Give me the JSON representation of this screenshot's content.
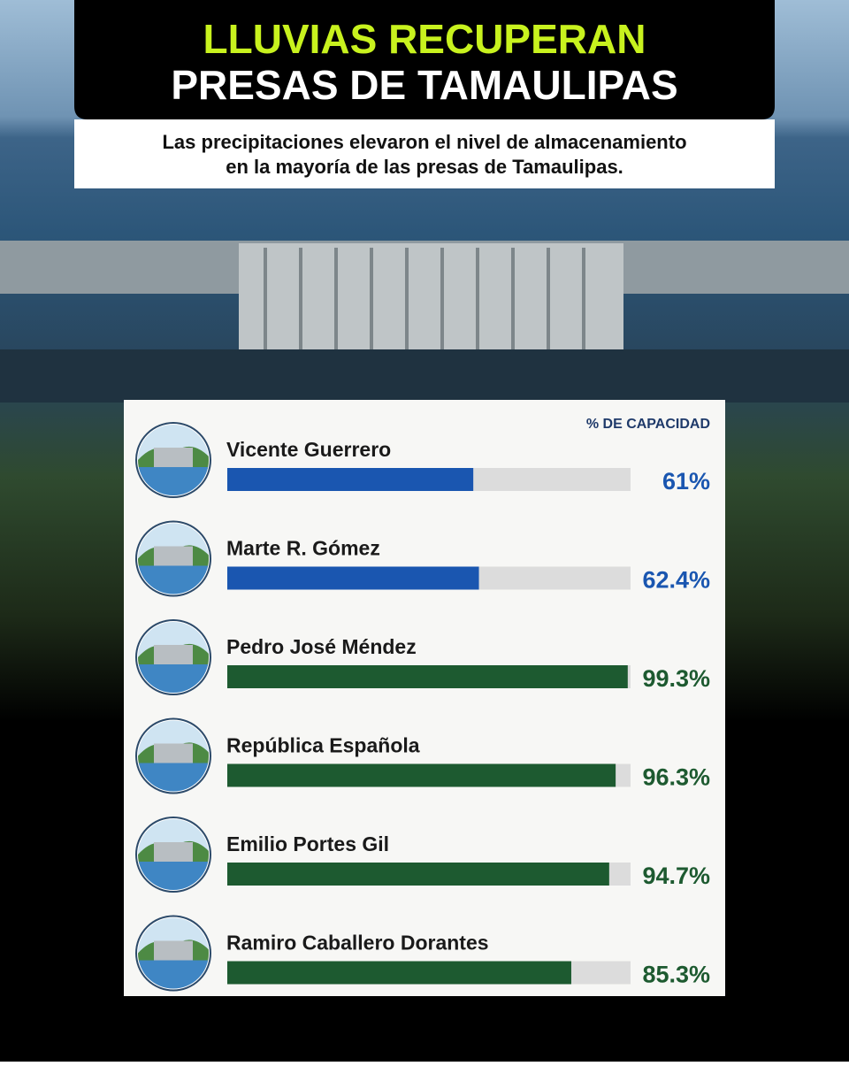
{
  "chart_data": {
    "type": "bar",
    "title": [
      "LLUVIAS RECUPERAN",
      "PRESAS DE TAMAULIPAS"
    ],
    "subtitle": [
      "Las precipitaciones elevaron el nivel de almacenamiento",
      "en la mayoría de las presas de Tamaulipas."
    ],
    "value_axis_label": "% DE CAPACIDAD",
    "categories": [
      "Vicente Guerrero",
      "Marte R. Gómez",
      "Pedro José Méndez",
      "República Española",
      "Emilio Portes Gil",
      "Ramiro Caballero Dorantes"
    ],
    "values": [
      61,
      62.4,
      99.3,
      96.3,
      94.7,
      85.3
    ],
    "value_labels": [
      "61%",
      "62.4%",
      "99.3%",
      "96.3%",
      "94.7%",
      "85.3%"
    ],
    "colors": [
      "#1a56b0",
      "#1a56b0",
      "#1d5a30",
      "#1d5a30",
      "#1d5a30",
      "#1d5a30"
    ],
    "xlim": [
      0,
      100
    ]
  }
}
